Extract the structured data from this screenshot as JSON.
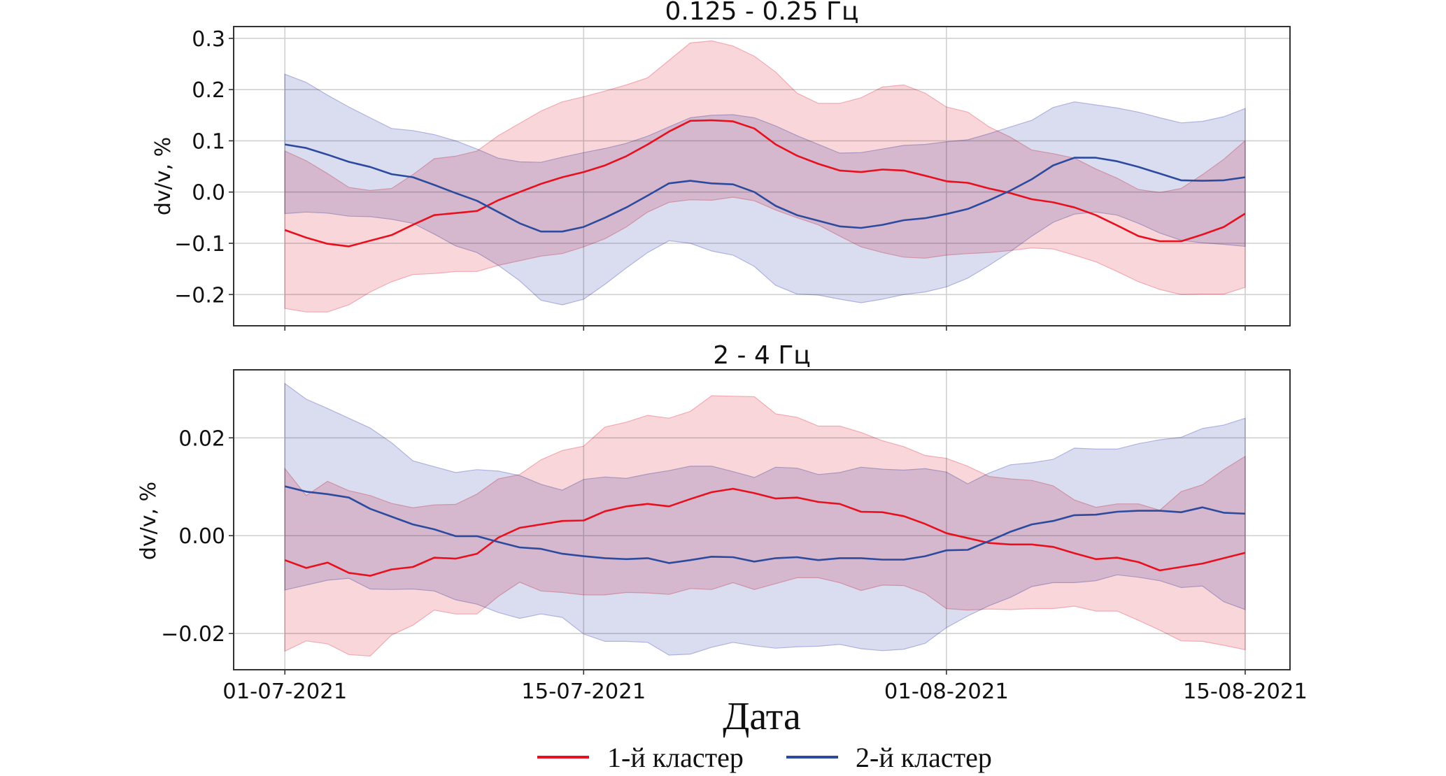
{
  "chart_data": {
    "type": "line",
    "x_dates_start": "01-07-2021",
    "x_count_days": 46,
    "xlabel": "Дата",
    "xticks": [
      {
        "day": 0,
        "label": "01-07-2021"
      },
      {
        "day": 14,
        "label": "15-07-2021"
      },
      {
        "day": 31,
        "label": "01-08-2021"
      },
      {
        "day": 45,
        "label": "15-08-2021"
      }
    ],
    "xlim_days": [
      -2.4,
      47.1
    ],
    "grid": true,
    "legend": {
      "placement": "bottom-center",
      "entries": [
        {
          "label": "1-й кластер",
          "color": "#e8101e"
        },
        {
          "label": "2-й кластер",
          "color": "#2c4a9e"
        }
      ]
    },
    "colors": {
      "cluster1_line": "#e8101e",
      "cluster1_fill": "#f9d6da",
      "cluster2_line": "#2c4a9e",
      "cluster2_fill": "#dadcf0"
    },
    "panels": [
      {
        "title": "0.125 - 0.25 Гц",
        "ylabel": "dv/v, %",
        "ylim": [
          -0.261,
          0.323
        ],
        "yticks": [
          {
            "value": 0.3,
            "label": "0.3"
          },
          {
            "value": 0.2,
            "label": "0.2"
          },
          {
            "value": 0.1,
            "label": "0.1"
          },
          {
            "value": 0.0,
            "label": "0.0"
          },
          {
            "value": -0.1,
            "label": "−0.1"
          },
          {
            "value": -0.2,
            "label": "−0.2"
          }
        ],
        "series": [
          {
            "name": "1-й кластер",
            "mean": [
              -0.074,
              -0.089,
              -0.101,
              -0.106,
              -0.095,
              -0.084,
              -0.064,
              -0.045,
              -0.041,
              -0.037,
              -0.016,
              0.0,
              0.016,
              0.029,
              0.039,
              0.052,
              0.07,
              0.093,
              0.118,
              0.139,
              0.14,
              0.138,
              0.124,
              0.093,
              0.071,
              0.055,
              0.042,
              0.039,
              0.044,
              0.042,
              0.032,
              0.021,
              0.018,
              0.007,
              -0.002,
              -0.014,
              -0.02,
              -0.03,
              -0.045,
              -0.065,
              -0.086,
              -0.096,
              -0.096,
              -0.083,
              -0.068,
              -0.042
            ],
            "upper": [
              0.08,
              0.061,
              0.036,
              0.009,
              0.003,
              0.007,
              0.034,
              0.065,
              0.07,
              0.08,
              0.11,
              0.134,
              0.158,
              0.176,
              0.186,
              0.197,
              0.209,
              0.223,
              0.257,
              0.291,
              0.295,
              0.285,
              0.265,
              0.234,
              0.193,
              0.173,
              0.173,
              0.184,
              0.205,
              0.209,
              0.193,
              0.166,
              0.156,
              0.127,
              0.107,
              0.082,
              0.075,
              0.066,
              0.045,
              0.027,
              0.005,
              -0.001,
              0.007,
              0.034,
              0.064,
              0.1
            ],
            "lower": [
              -0.227,
              -0.234,
              -0.234,
              -0.22,
              -0.195,
              -0.175,
              -0.161,
              -0.159,
              -0.155,
              -0.155,
              -0.143,
              -0.134,
              -0.125,
              -0.12,
              -0.107,
              -0.091,
              -0.068,
              -0.039,
              -0.02,
              -0.015,
              -0.016,
              -0.01,
              -0.017,
              -0.035,
              -0.05,
              -0.064,
              -0.086,
              -0.107,
              -0.118,
              -0.127,
              -0.129,
              -0.123,
              -0.12,
              -0.118,
              -0.114,
              -0.109,
              -0.111,
              -0.123,
              -0.136,
              -0.155,
              -0.175,
              -0.19,
              -0.2,
              -0.199,
              -0.199,
              -0.186
            ]
          },
          {
            "name": "2-й кластер",
            "mean": [
              0.093,
              0.086,
              0.073,
              0.059,
              0.049,
              0.035,
              0.029,
              0.014,
              -0.002,
              -0.017,
              -0.039,
              -0.061,
              -0.077,
              -0.077,
              -0.068,
              -0.05,
              -0.03,
              -0.007,
              0.017,
              0.022,
              0.017,
              0.015,
              0.0,
              -0.027,
              -0.045,
              -0.056,
              -0.067,
              -0.07,
              -0.064,
              -0.055,
              -0.051,
              -0.043,
              -0.033,
              -0.016,
              0.003,
              0.025,
              0.052,
              0.067,
              0.067,
              0.06,
              0.049,
              0.036,
              0.023,
              0.022,
              0.023,
              0.029
            ],
            "upper": [
              0.23,
              0.214,
              0.189,
              0.166,
              0.145,
              0.124,
              0.12,
              0.112,
              0.1,
              0.084,
              0.066,
              0.059,
              0.058,
              0.068,
              0.077,
              0.085,
              0.095,
              0.109,
              0.127,
              0.145,
              0.15,
              0.151,
              0.145,
              0.129,
              0.11,
              0.093,
              0.076,
              0.077,
              0.084,
              0.091,
              0.093,
              0.098,
              0.102,
              0.114,
              0.127,
              0.14,
              0.165,
              0.176,
              0.17,
              0.164,
              0.156,
              0.145,
              0.135,
              0.138,
              0.147,
              0.163
            ],
            "lower": [
              -0.042,
              -0.039,
              -0.041,
              -0.047,
              -0.048,
              -0.053,
              -0.061,
              -0.082,
              -0.105,
              -0.118,
              -0.143,
              -0.173,
              -0.211,
              -0.22,
              -0.209,
              -0.18,
              -0.148,
              -0.118,
              -0.095,
              -0.1,
              -0.115,
              -0.123,
              -0.145,
              -0.182,
              -0.199,
              -0.201,
              -0.209,
              -0.216,
              -0.209,
              -0.2,
              -0.195,
              -0.185,
              -0.168,
              -0.143,
              -0.116,
              -0.086,
              -0.059,
              -0.043,
              -0.039,
              -0.045,
              -0.061,
              -0.08,
              -0.094,
              -0.099,
              -0.102,
              -0.106
            ]
          }
        ]
      },
      {
        "title": "2 - 4 Гц",
        "ylabel": "dv/v, %",
        "ylim": [
          -0.0274,
          0.0339
        ],
        "yticks": [
          {
            "value": 0.02,
            "label": "0.02"
          },
          {
            "value": 0.0,
            "label": "0.00"
          },
          {
            "value": -0.02,
            "label": "−0.02"
          }
        ],
        "series": [
          {
            "name": "1-й кластер",
            "mean": [
              -0.005,
              -0.0066,
              -0.0055,
              -0.0076,
              -0.0082,
              -0.0069,
              -0.0064,
              -0.0045,
              -0.0047,
              -0.0037,
              -0.0004,
              0.0016,
              0.0023,
              0.003,
              0.0031,
              0.005,
              0.006,
              0.0065,
              0.006,
              0.0075,
              0.0089,
              0.0096,
              0.0087,
              0.0076,
              0.0078,
              0.0069,
              0.0065,
              0.0049,
              0.0048,
              0.004,
              0.0024,
              0.0005,
              -0.0005,
              -0.0015,
              -0.0018,
              -0.0018,
              -0.0023,
              -0.0036,
              -0.0048,
              -0.0045,
              -0.0054,
              -0.0071,
              -0.0064,
              -0.0057,
              -0.0046,
              -0.0035
            ],
            "upper": [
              0.0137,
              0.0082,
              0.0111,
              0.0092,
              0.0082,
              0.0066,
              0.0057,
              0.0063,
              0.0064,
              0.0085,
              0.0116,
              0.0125,
              0.0155,
              0.0174,
              0.0183,
              0.0222,
              0.0232,
              0.0246,
              0.024,
              0.0254,
              0.0286,
              0.0285,
              0.0284,
              0.0249,
              0.0242,
              0.0224,
              0.0224,
              0.0211,
              0.0194,
              0.0182,
              0.0164,
              0.0158,
              0.0142,
              0.0121,
              0.0116,
              0.0113,
              0.0102,
              0.0073,
              0.0058,
              0.0065,
              0.0065,
              0.0052,
              0.009,
              0.0104,
              0.0135,
              0.0162
            ],
            "lower": [
              -0.0236,
              -0.0215,
              -0.0221,
              -0.0243,
              -0.0246,
              -0.0203,
              -0.0183,
              -0.0152,
              -0.016,
              -0.016,
              -0.0124,
              -0.0095,
              -0.0113,
              -0.0116,
              -0.0121,
              -0.0121,
              -0.0116,
              -0.0117,
              -0.012,
              -0.0108,
              -0.011,
              -0.0096,
              -0.011,
              -0.0098,
              -0.0086,
              -0.0086,
              -0.0096,
              -0.0112,
              -0.0101,
              -0.0102,
              -0.0118,
              -0.0149,
              -0.0152,
              -0.015,
              -0.0151,
              -0.0149,
              -0.0149,
              -0.0144,
              -0.0154,
              -0.0154,
              -0.0173,
              -0.0193,
              -0.0215,
              -0.0216,
              -0.0224,
              -0.0233
            ]
          },
          {
            "name": "2-й кластер",
            "mean": [
              0.0101,
              0.009,
              0.0085,
              0.0078,
              0.0055,
              0.0039,
              0.0023,
              0.0013,
              -0.0001,
              -0.0001,
              -0.0013,
              -0.0024,
              -0.0027,
              -0.0037,
              -0.0042,
              -0.0046,
              -0.0048,
              -0.0046,
              -0.0056,
              -0.005,
              -0.0043,
              -0.0044,
              -0.0053,
              -0.0046,
              -0.0044,
              -0.005,
              -0.0046,
              -0.0046,
              -0.0049,
              -0.0049,
              -0.0042,
              -0.003,
              -0.0029,
              -0.0011,
              0.0008,
              0.0023,
              0.003,
              0.0042,
              0.0043,
              0.0049,
              0.0051,
              0.0051,
              0.0048,
              0.0058,
              0.0047,
              0.0045
            ],
            "upper": [
              0.0311,
              0.0279,
              0.026,
              0.024,
              0.022,
              0.019,
              0.0153,
              0.0141,
              0.0129,
              0.0135,
              0.0132,
              0.0123,
              0.0105,
              0.0093,
              0.0115,
              0.012,
              0.0117,
              0.0126,
              0.0133,
              0.0142,
              0.0142,
              0.0131,
              0.0119,
              0.014,
              0.0138,
              0.0125,
              0.0129,
              0.014,
              0.0136,
              0.0134,
              0.0137,
              0.013,
              0.0106,
              0.0128,
              0.0145,
              0.0149,
              0.0156,
              0.0179,
              0.0177,
              0.0177,
              0.0188,
              0.0196,
              0.0201,
              0.0219,
              0.0226,
              0.024
            ],
            "lower": [
              -0.0111,
              -0.0101,
              -0.0091,
              -0.0087,
              -0.0109,
              -0.011,
              -0.0109,
              -0.0113,
              -0.0131,
              -0.014,
              -0.0157,
              -0.0169,
              -0.016,
              -0.0167,
              -0.0201,
              -0.0216,
              -0.0216,
              -0.0218,
              -0.0244,
              -0.0242,
              -0.0228,
              -0.0218,
              -0.0225,
              -0.023,
              -0.0227,
              -0.0226,
              -0.0222,
              -0.0231,
              -0.0235,
              -0.0232,
              -0.022,
              -0.0188,
              -0.0164,
              -0.0143,
              -0.0126,
              -0.0104,
              -0.0096,
              -0.0096,
              -0.0092,
              -0.008,
              -0.0085,
              -0.0092,
              -0.0106,
              -0.0103,
              -0.0135,
              -0.0151
            ]
          }
        ]
      }
    ]
  }
}
